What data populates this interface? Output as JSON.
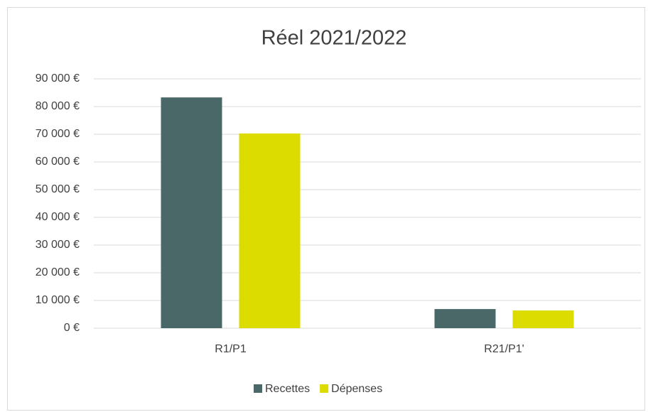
{
  "chart_data": {
    "type": "bar",
    "title": "Réel 2021/2022",
    "categories": [
      "R1/P1",
      "R21/P1'"
    ],
    "series": [
      {
        "name": "Recettes",
        "color": "#4a6868",
        "values": [
          83300,
          6900
        ]
      },
      {
        "name": "Dépenses",
        "color": "#dcdc00",
        "values": [
          70300,
          6400
        ]
      }
    ],
    "ylim": [
      0,
      90000
    ],
    "yticks": [
      {
        "value": 0,
        "label": "0 €"
      },
      {
        "value": 10000,
        "label": "10 000 €"
      },
      {
        "value": 20000,
        "label": "20 000 €"
      },
      {
        "value": 30000,
        "label": "30 000 €"
      },
      {
        "value": 40000,
        "label": "40 000 €"
      },
      {
        "value": 50000,
        "label": "50 000 €"
      },
      {
        "value": 60000,
        "label": "60 000 €"
      },
      {
        "value": 70000,
        "label": "70 000 €"
      },
      {
        "value": 80000,
        "label": "80 000 €"
      },
      {
        "value": 90000,
        "label": "90 000 €"
      }
    ],
    "grid": true,
    "legend": "bottom"
  }
}
